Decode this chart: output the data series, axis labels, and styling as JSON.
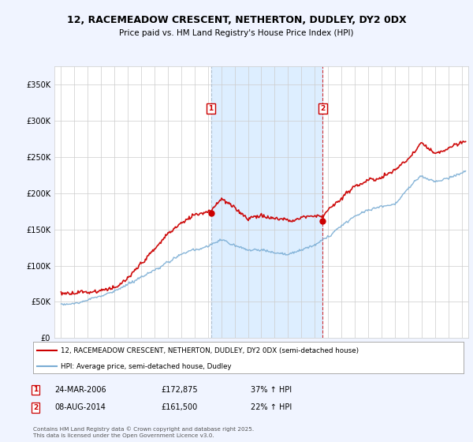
{
  "title_line1": "12, RACEMEADOW CRESCENT, NETHERTON, DUDLEY, DY2 0DX",
  "title_line2": "Price paid vs. HM Land Registry's House Price Index (HPI)",
  "background_color": "#f0f4ff",
  "plot_bg_color": "#ffffff",
  "grid_color": "#cccccc",
  "red_line_color": "#cc0000",
  "blue_line_color": "#7aadd4",
  "shade_color": "#ddeeff",
  "marker1_x": 2006.23,
  "marker2_x": 2014.6,
  "marker1_y": 172875,
  "marker2_y": 161500,
  "marker1_label": "1",
  "marker2_label": "2",
  "marker1_date": "24-MAR-2006",
  "marker1_price": "£172,875",
  "marker1_hpi": "37% ↑ HPI",
  "marker2_date": "08-AUG-2014",
  "marker2_price": "£161,500",
  "marker2_hpi": "22% ↑ HPI",
  "legend_label_red": "12, RACEMEADOW CRESCENT, NETHERTON, DUDLEY, DY2 0DX (semi-detached house)",
  "legend_label_blue": "HPI: Average price, semi-detached house, Dudley",
  "footer": "Contains HM Land Registry data © Crown copyright and database right 2025.\nThis data is licensed under the Open Government Licence v3.0.",
  "ylim": [
    0,
    375000
  ],
  "yticks": [
    0,
    50000,
    100000,
    150000,
    200000,
    250000,
    300000,
    350000
  ],
  "ytick_labels": [
    "£0",
    "£50K",
    "£100K",
    "£150K",
    "£200K",
    "£250K",
    "£300K",
    "£350K"
  ],
  "xlim": [
    1994.5,
    2025.5
  ],
  "xticks": [
    1995,
    1996,
    1997,
    1998,
    1999,
    2000,
    2001,
    2002,
    2003,
    2004,
    2005,
    2006,
    2007,
    2008,
    2009,
    2010,
    2011,
    2012,
    2013,
    2014,
    2015,
    2016,
    2017,
    2018,
    2019,
    2020,
    2021,
    2022,
    2023,
    2024,
    2025
  ],
  "fig_width": 6.0,
  "fig_height": 5.6,
  "dpi": 100
}
